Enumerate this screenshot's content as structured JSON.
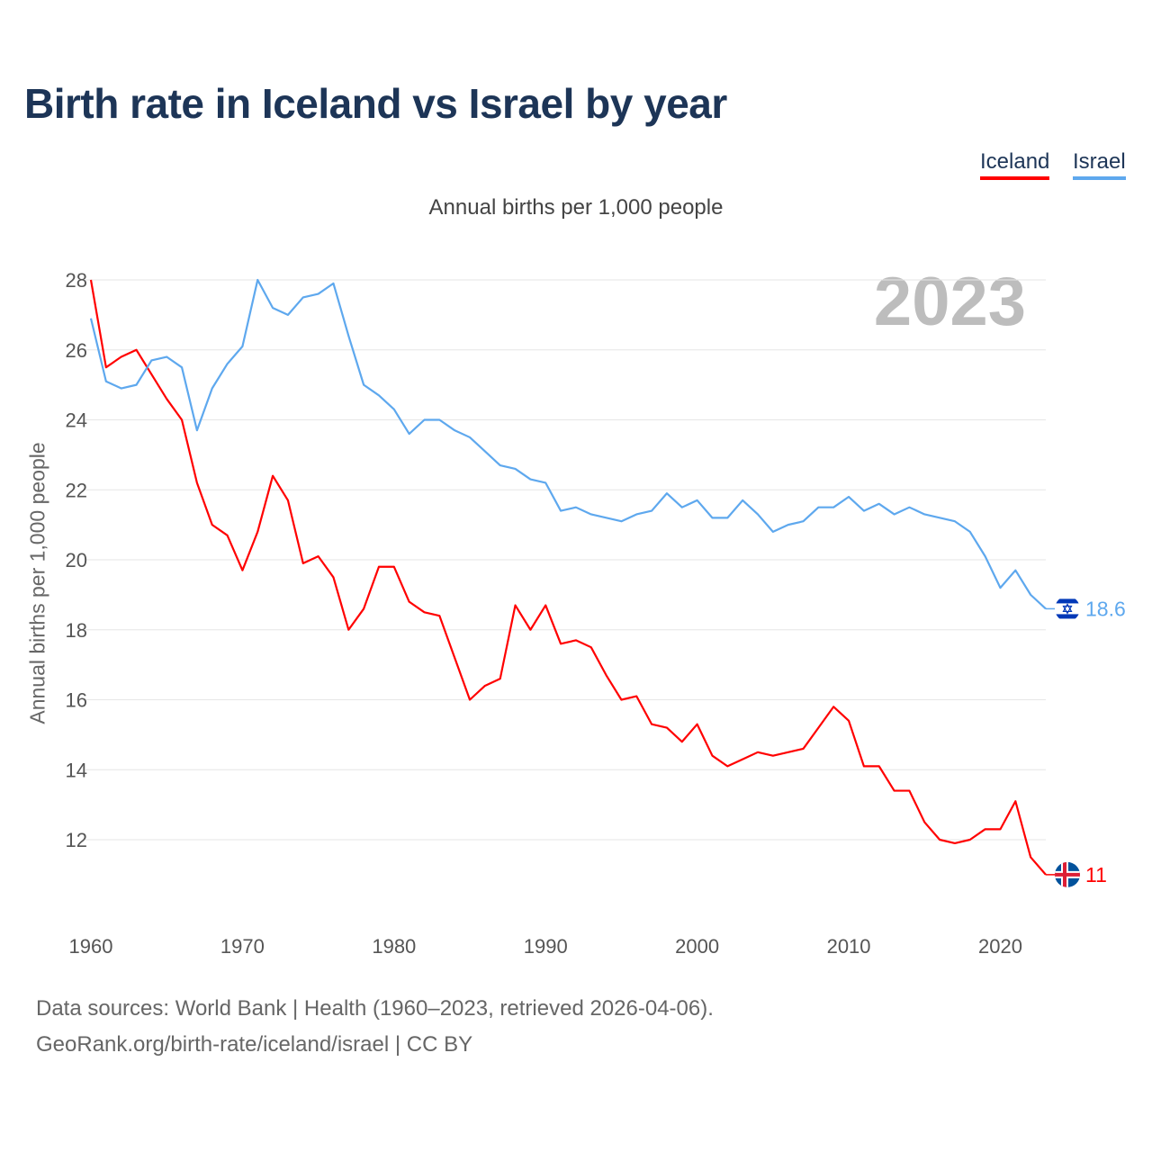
{
  "chart_data": {
    "type": "line",
    "title": "Birth rate in Iceland vs Israel by year",
    "subtitle": "Annual births per 1,000 people",
    "ylabel": "Annual births per 1,000 people",
    "xlabel": "",
    "highlight_year": "2023",
    "xlim": [
      1960,
      2023
    ],
    "ylim": [
      10,
      28
    ],
    "yticks": [
      12,
      14,
      16,
      18,
      20,
      22,
      24,
      26,
      28
    ],
    "xticks": [
      1960,
      1970,
      1980,
      1990,
      2000,
      2010,
      2020
    ],
    "grid": true,
    "legend_position": "top-right",
    "x": [
      1960,
      1961,
      1962,
      1963,
      1964,
      1965,
      1966,
      1967,
      1968,
      1969,
      1970,
      1971,
      1972,
      1973,
      1974,
      1975,
      1976,
      1977,
      1978,
      1979,
      1980,
      1981,
      1982,
      1983,
      1984,
      1985,
      1986,
      1987,
      1988,
      1989,
      1990,
      1991,
      1992,
      1993,
      1994,
      1995,
      1996,
      1997,
      1998,
      1999,
      2000,
      2001,
      2002,
      2003,
      2004,
      2005,
      2006,
      2007,
      2008,
      2009,
      2010,
      2011,
      2012,
      2013,
      2014,
      2015,
      2016,
      2017,
      2018,
      2019,
      2020,
      2021,
      2022,
      2023
    ],
    "series": [
      {
        "name": "Iceland",
        "color": "#ff0000",
        "end_label": "11",
        "values": [
          28.0,
          25.5,
          25.8,
          26.0,
          25.3,
          24.6,
          24.0,
          22.2,
          21.0,
          20.7,
          19.7,
          20.8,
          22.4,
          21.7,
          19.9,
          20.1,
          19.5,
          18.0,
          18.6,
          19.8,
          19.8,
          18.8,
          18.5,
          18.4,
          17.2,
          16.0,
          16.4,
          16.6,
          18.7,
          18.0,
          18.7,
          17.6,
          17.7,
          17.5,
          16.7,
          16.0,
          16.1,
          15.3,
          15.2,
          14.8,
          15.3,
          14.4,
          14.1,
          14.3,
          14.5,
          14.4,
          14.5,
          14.6,
          15.2,
          15.8,
          15.4,
          14.1,
          14.1,
          13.4,
          13.4,
          12.5,
          12.0,
          11.9,
          12.0,
          12.3,
          12.3,
          13.1,
          11.5,
          11.0
        ]
      },
      {
        "name": "Israel",
        "color": "#5ea8ee",
        "end_label": "18.6",
        "values": [
          26.9,
          25.1,
          24.9,
          25.0,
          25.7,
          25.8,
          25.5,
          23.7,
          24.9,
          25.6,
          26.1,
          28.0,
          27.2,
          27.0,
          27.5,
          27.6,
          27.9,
          26.4,
          25.0,
          24.7,
          24.3,
          23.6,
          24.0,
          24.0,
          23.7,
          23.5,
          23.1,
          22.7,
          22.6,
          22.3,
          22.2,
          21.4,
          21.5,
          21.3,
          21.2,
          21.1,
          21.3,
          21.4,
          21.9,
          21.5,
          21.7,
          21.2,
          21.2,
          21.7,
          21.3,
          20.8,
          21.0,
          21.1,
          21.5,
          21.5,
          21.8,
          21.4,
          21.6,
          21.3,
          21.5,
          21.3,
          21.2,
          21.1,
          20.8,
          20.1,
          19.2,
          19.7,
          19.0,
          18.6
        ]
      }
    ]
  },
  "footer": {
    "line1": "Data sources: World Bank | Health (1960–2023, retrieved 2026-04-06).",
    "line2": "GeoRank.org/birth-rate/iceland/israel | CC BY"
  }
}
